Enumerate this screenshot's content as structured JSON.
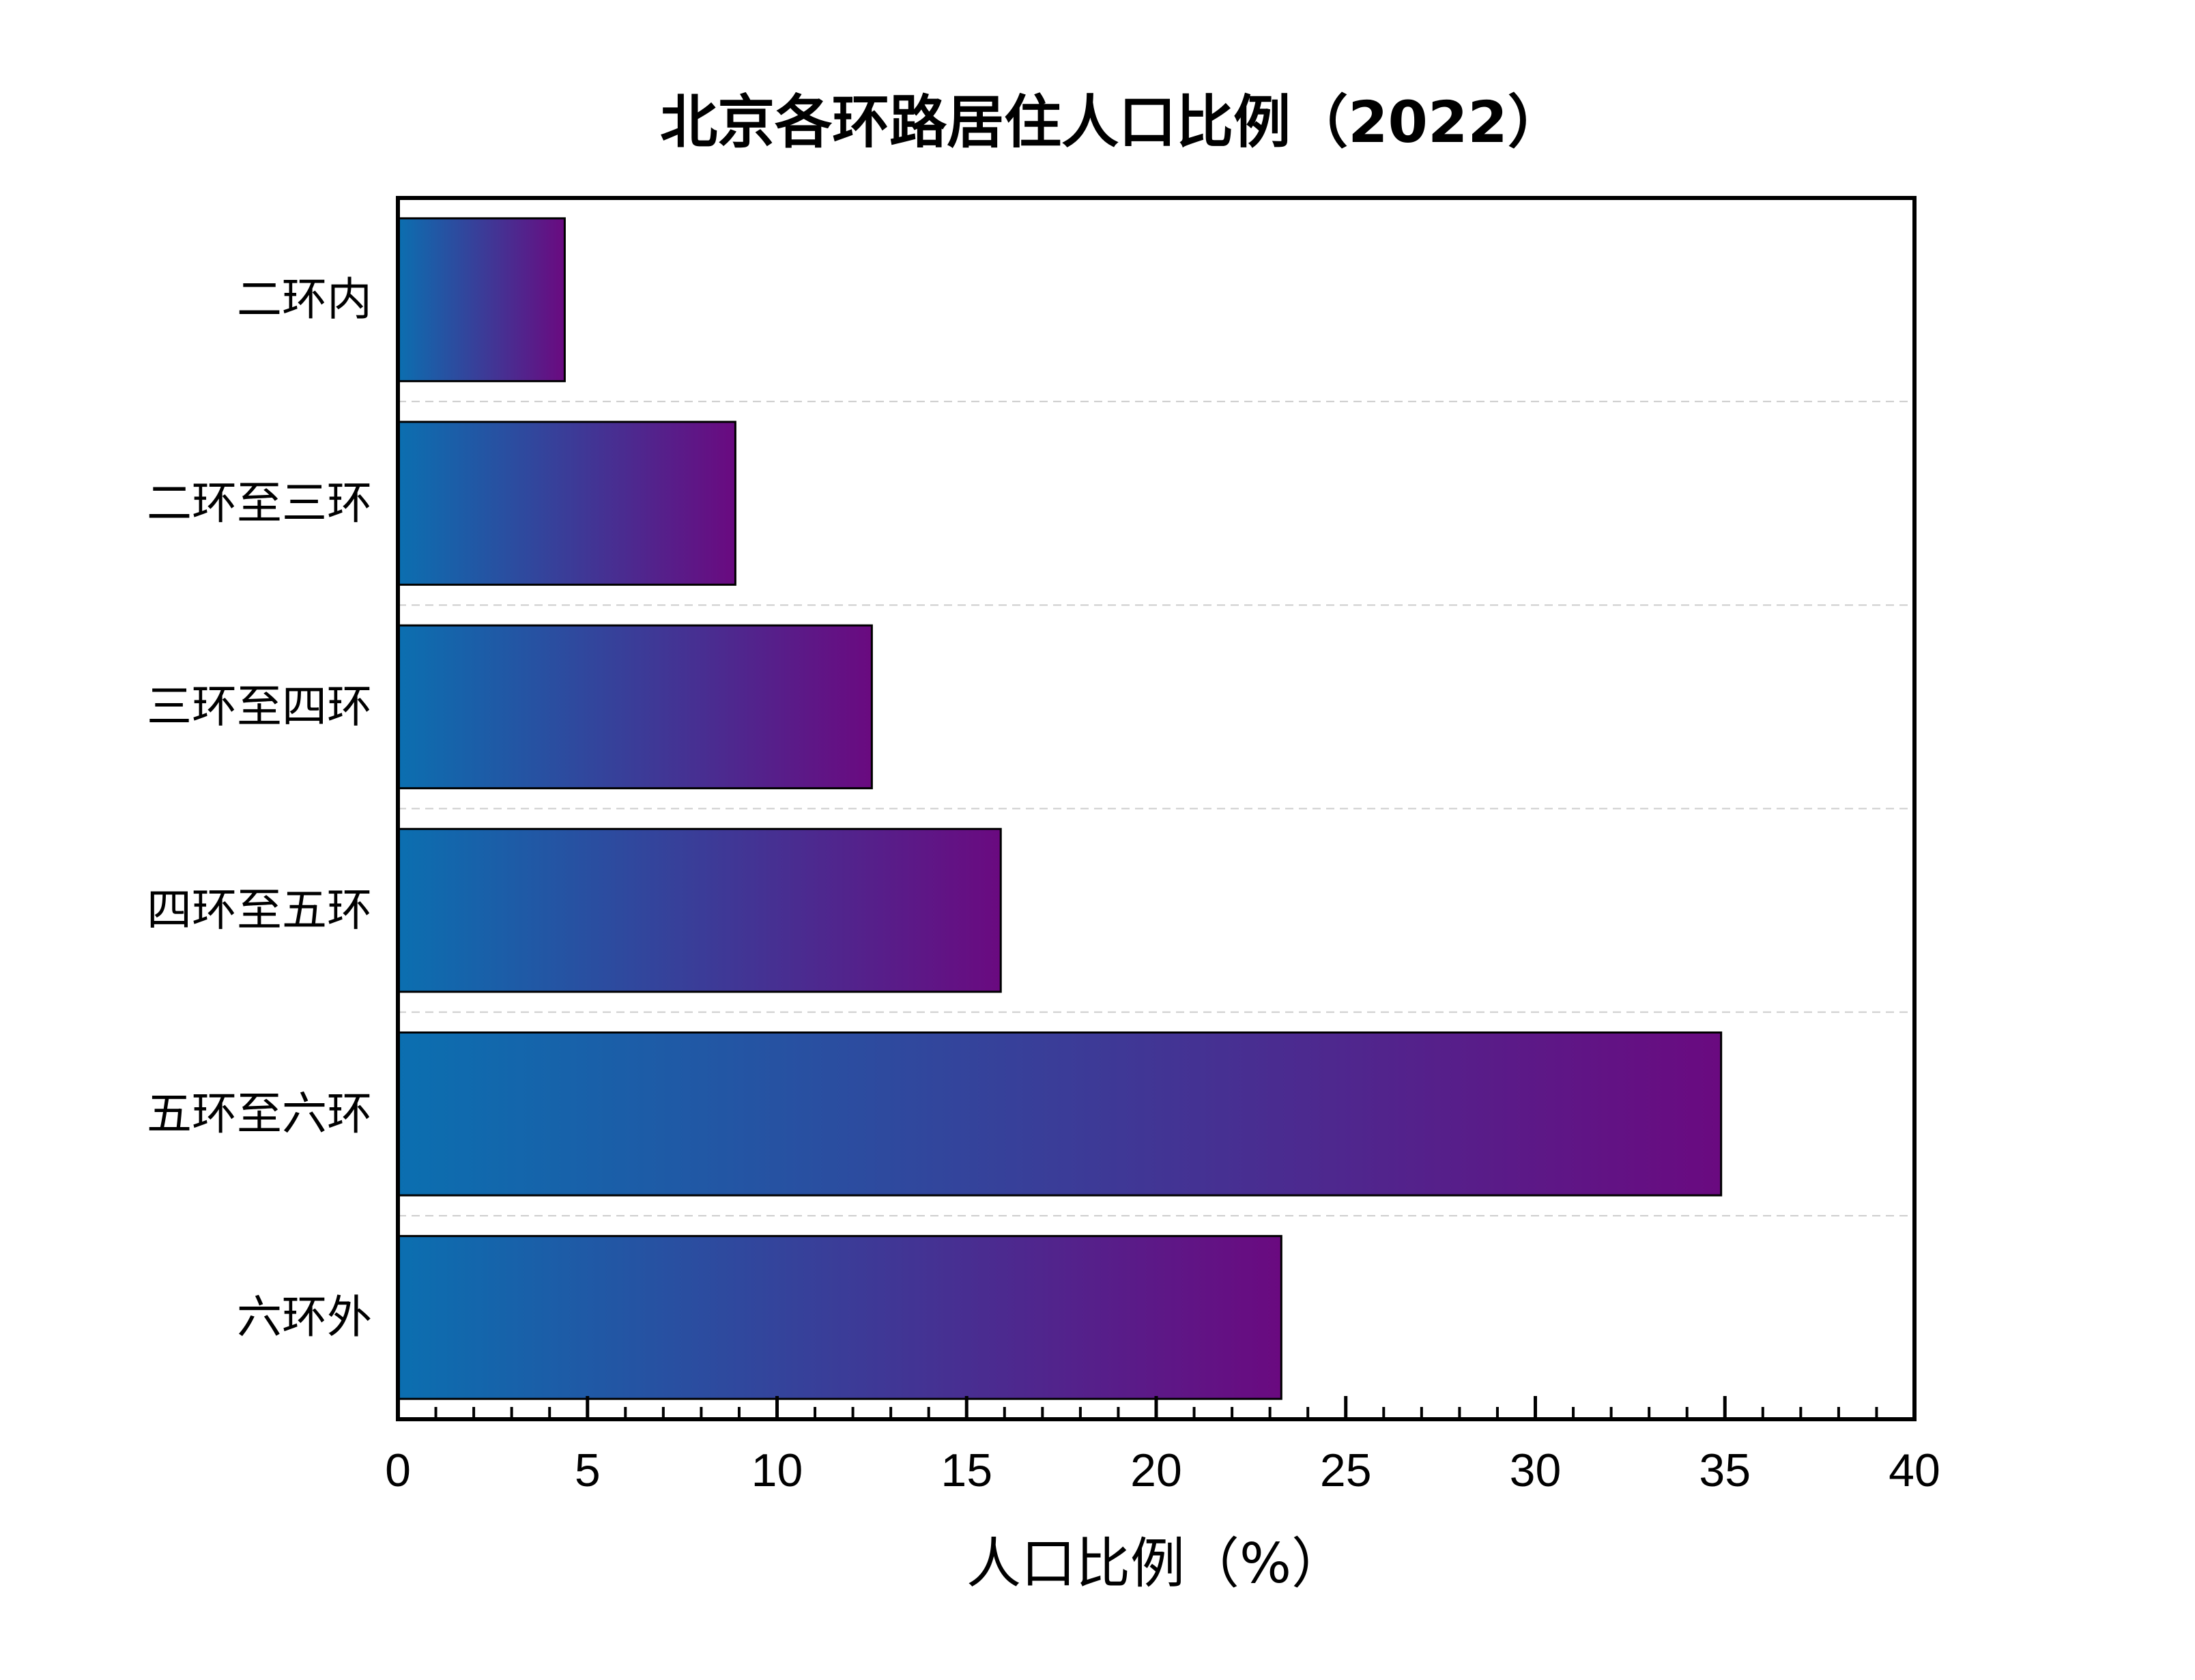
{
  "chart_data": {
    "type": "bar",
    "orientation": "horizontal",
    "title": "北京各环路居住人口比例（2022）",
    "xlabel": "人口比例（%）",
    "ylabel": "",
    "categories": [
      "二环内",
      "二环至三环",
      "三环至四环",
      "四环至五环",
      "五环至六环",
      "六环外"
    ],
    "values": [
      4.4,
      8.9,
      12.5,
      15.9,
      34.9,
      23.3
    ],
    "xlim": [
      0,
      40
    ],
    "xticks": [
      "0",
      "5",
      "10",
      "15",
      "20",
      "25",
      "30",
      "35",
      "40"
    ],
    "grid": "horizontal dashed between categories",
    "legend": "none",
    "colors": {
      "gradient_start": "#0b6fb0",
      "gradient_end": "#6a0a80",
      "bar_edge": "#000000",
      "grid": "#cccccc",
      "axis": "#000000"
    }
  }
}
